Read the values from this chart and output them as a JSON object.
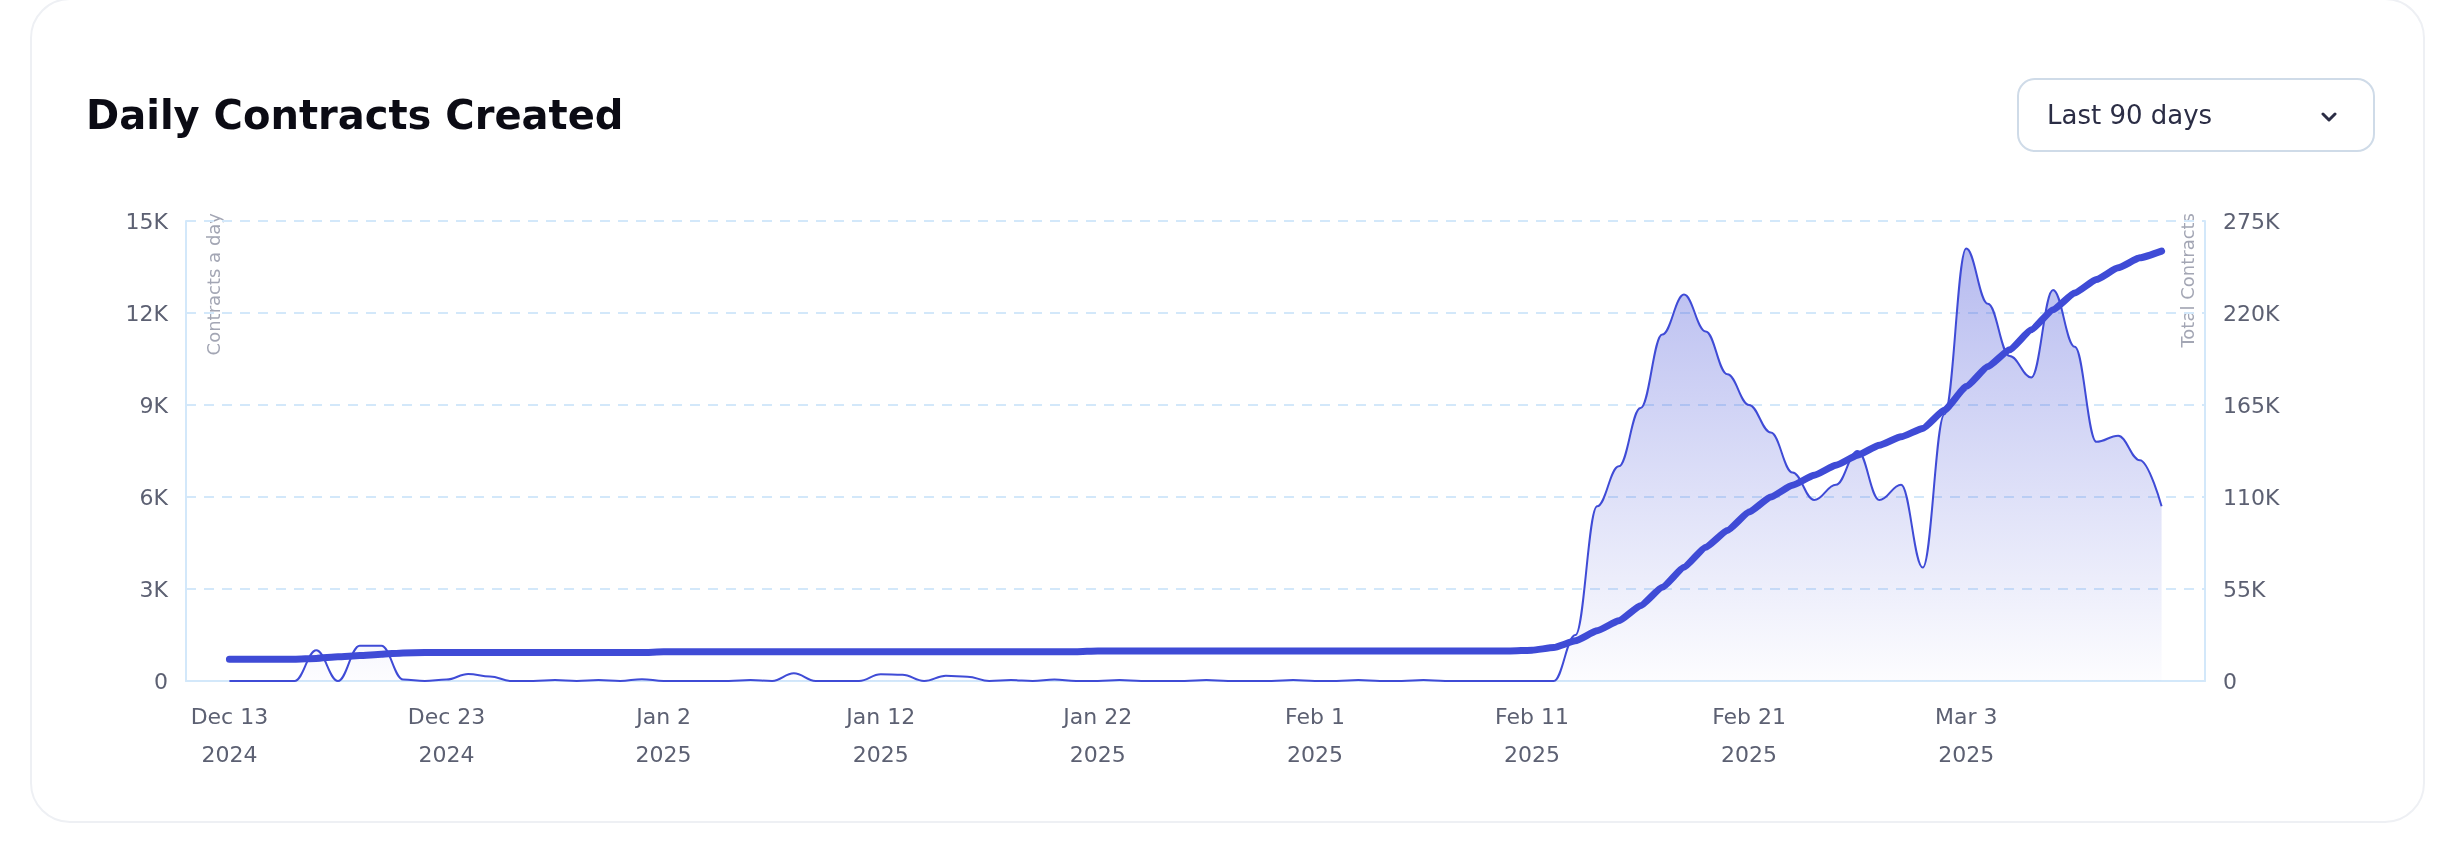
{
  "chart_data": {
    "type": "area",
    "title": "Daily Contracts Created",
    "ylabel": "Contracts a day",
    "y2label": "Total Contracts",
    "annotations": [
      "Last 90 days"
    ],
    "x": [
      "2024-12-13",
      "2024-12-14",
      "2024-12-15",
      "2024-12-16",
      "2024-12-17",
      "2024-12-18",
      "2024-12-19",
      "2024-12-20",
      "2024-12-21",
      "2024-12-22",
      "2024-12-23",
      "2024-12-24",
      "2024-12-25",
      "2024-12-26",
      "2024-12-27",
      "2024-12-28",
      "2024-12-29",
      "2024-12-30",
      "2024-12-31",
      "2025-01-01",
      "2025-01-02",
      "2025-01-03",
      "2025-01-04",
      "2025-01-05",
      "2025-01-06",
      "2025-01-07",
      "2025-01-08",
      "2025-01-09",
      "2025-01-10",
      "2025-01-11",
      "2025-01-12",
      "2025-01-13",
      "2025-01-14",
      "2025-01-15",
      "2025-01-16",
      "2025-01-17",
      "2025-01-18",
      "2025-01-19",
      "2025-01-20",
      "2025-01-21",
      "2025-01-22",
      "2025-01-23",
      "2025-01-24",
      "2025-01-25",
      "2025-01-26",
      "2025-01-27",
      "2025-01-28",
      "2025-01-29",
      "2025-01-30",
      "2025-01-31",
      "2025-02-01",
      "2025-02-02",
      "2025-02-03",
      "2025-02-04",
      "2025-02-05",
      "2025-02-06",
      "2025-02-07",
      "2025-02-08",
      "2025-02-09",
      "2025-02-10",
      "2025-02-11",
      "2025-02-12",
      "2025-02-13",
      "2025-02-14",
      "2025-02-15",
      "2025-02-16",
      "2025-02-17",
      "2025-02-18",
      "2025-02-19",
      "2025-02-20",
      "2025-02-21",
      "2025-02-22",
      "2025-02-23",
      "2025-02-24",
      "2025-02-25",
      "2025-02-26",
      "2025-02-27",
      "2025-02-28",
      "2025-03-01",
      "2025-03-02",
      "2025-03-03",
      "2025-03-04",
      "2025-03-05",
      "2025-03-06",
      "2025-03-07",
      "2025-03-08",
      "2025-03-09",
      "2025-03-10",
      "2025-03-11",
      "2025-03-12"
    ],
    "series": [
      {
        "color": "#3f4bd6",
        "values": [
          0,
          0,
          0,
          0,
          1000,
          0,
          1150,
          1150,
          50,
          0,
          50,
          230,
          150,
          0,
          0,
          30,
          0,
          30,
          0,
          60,
          0,
          0,
          0,
          0,
          30,
          0,
          250,
          0,
          0,
          0,
          220,
          200,
          0,
          170,
          140,
          0,
          30,
          0,
          50,
          0,
          0,
          30,
          0,
          0,
          0,
          30,
          0,
          0,
          0,
          30,
          0,
          0,
          30,
          0,
          0,
          30,
          0,
          0,
          0,
          0,
          0,
          0,
          1500,
          5700,
          7000,
          8900,
          11300,
          12600,
          11400,
          10000,
          9000,
          8100,
          6800,
          5900,
          6400,
          7500,
          5900,
          6400,
          3700,
          8700,
          14100,
          12300,
          10600,
          9900,
          12750,
          10900,
          7800,
          8000,
          7200,
          5700
        ]
      },
      {
        "type": "line",
        "axis": "y2",
        "color": "#3f4bd6",
        "values": [
          13000,
          13000,
          13000,
          13000,
          13500,
          14500,
          15200,
          16000,
          16800,
          17000,
          17000,
          17000,
          17000,
          17000,
          17000,
          17000,
          17000,
          17000,
          17000,
          17000,
          17500,
          17500,
          17500,
          17500,
          17500,
          17500,
          17500,
          17500,
          17500,
          17500,
          17500,
          17500,
          17500,
          17500,
          17500,
          17500,
          17500,
          17500,
          17500,
          17500,
          18000,
          18000,
          18000,
          18000,
          18000,
          18000,
          18000,
          18000,
          18000,
          18000,
          18000,
          18000,
          18000,
          18000,
          18000,
          18000,
          18000,
          18000,
          18000,
          18000,
          18400,
          20000,
          24000,
          30000,
          36000,
          45000,
          56000,
          68000,
          80000,
          90000,
          101000,
          110000,
          117000,
          123000,
          129000,
          135000,
          141000,
          146000,
          151000,
          162000,
          176000,
          188000,
          198000,
          210000,
          222000,
          232000,
          240000,
          247000,
          253000,
          257000
        ]
      }
    ],
    "xlim": [
      "2024-12-11",
      "2025-03-14"
    ],
    "xticks": [
      {
        "value": "2024-12-13",
        "label": "Dec 13\n2024"
      },
      {
        "value": "2024-12-23",
        "label": "Dec 23\n2024"
      },
      {
        "value": "2025-01-02",
        "label": "Jan 2\n2025"
      },
      {
        "value": "2025-01-12",
        "label": "Jan 12\n2025"
      },
      {
        "value": "2025-01-22",
        "label": "Jan 22\n2025"
      },
      {
        "value": "2025-02-01",
        "label": "Feb 1\n2025"
      },
      {
        "value": "2025-02-11",
        "label": "Feb 11\n2025"
      },
      {
        "value": "2025-02-21",
        "label": "Feb 21\n2025"
      },
      {
        "value": "2025-03-03",
        "label": "Mar 3\n2025"
      }
    ],
    "ylim": [
      0,
      15000
    ],
    "yticks": [
      0,
      {
        "value": 3000,
        "label": "3K"
      },
      {
        "value": 6000,
        "label": "6K"
      },
      {
        "value": 9000,
        "label": "9K"
      },
      {
        "value": 12000,
        "label": "12K"
      },
      {
        "value": 15000,
        "label": "15K"
      }
    ],
    "y2lim": [
      0,
      275000
    ],
    "y2ticks": [
      0,
      {
        "value": 55000,
        "label": "55K"
      },
      {
        "value": 110000,
        "label": "110K"
      },
      {
        "value": 165000,
        "label": "165K"
      },
      {
        "value": 220000,
        "label": "220K"
      },
      {
        "value": 275000,
        "label": "275K"
      }
    ],
    "grid": "y",
    "marker": "none",
    "line_style": "solid"
  }
}
